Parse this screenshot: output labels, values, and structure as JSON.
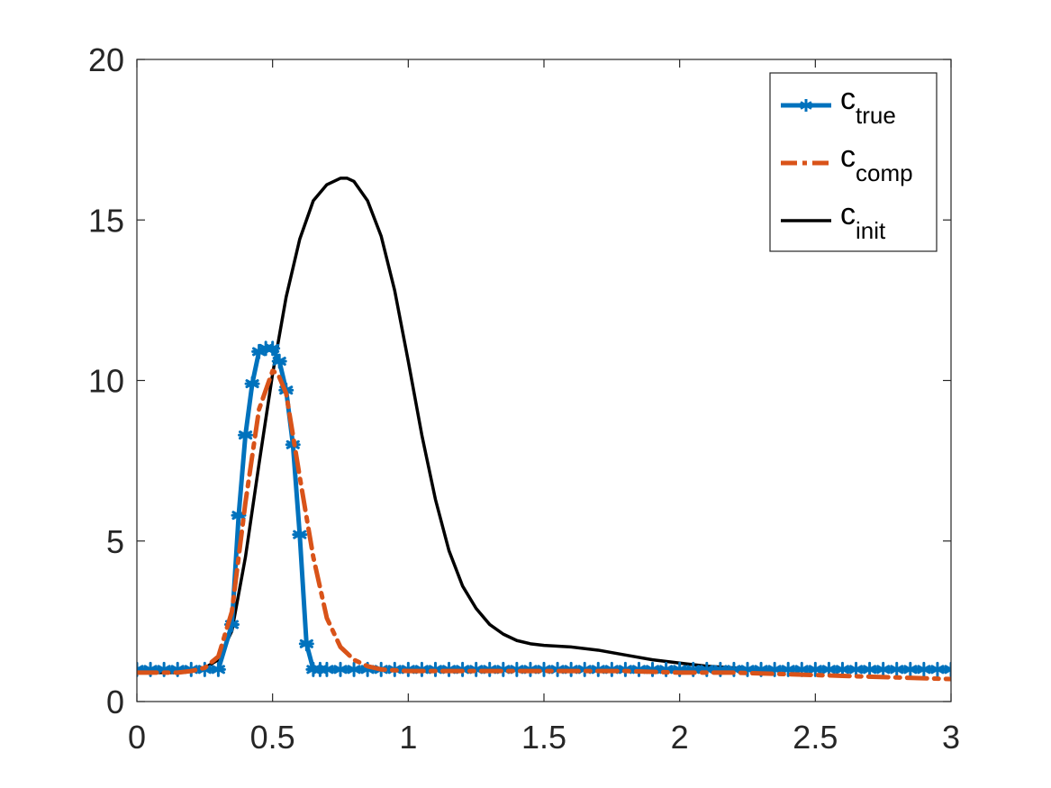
{
  "chart_data": {
    "type": "line",
    "title": "",
    "xlabel": "",
    "ylabel": "",
    "xlim": [
      0,
      3
    ],
    "ylim": [
      0,
      20
    ],
    "x_ticks": [
      "0",
      "0.5",
      "1",
      "1.5",
      "2",
      "2.5",
      "3"
    ],
    "y_ticks": [
      "0",
      "5",
      "10",
      "15",
      "20"
    ],
    "grid": false,
    "legend_position": "top-right",
    "series": [
      {
        "name": "c",
        "name_subscript": "true",
        "color": "#0072BD",
        "style": "solid-star-markers",
        "x": [
          0,
          0.05,
          0.1,
          0.15,
          0.2,
          0.25,
          0.3,
          0.35,
          0.375,
          0.4,
          0.425,
          0.45,
          0.475,
          0.5,
          0.525,
          0.55,
          0.575,
          0.6,
          0.625,
          0.65,
          0.675,
          0.7,
          0.75,
          0.8,
          0.85,
          0.9,
          0.95,
          1.0,
          1.05,
          1.1,
          1.15,
          1.2,
          1.25,
          1.3,
          1.35,
          1.4,
          1.45,
          1.5,
          1.55,
          1.6,
          1.65,
          1.7,
          1.75,
          1.8,
          1.85,
          1.9,
          1.95,
          2.0,
          2.05,
          2.1,
          2.15,
          2.2,
          2.25,
          2.3,
          2.35,
          2.4,
          2.45,
          2.5,
          2.55,
          2.6,
          2.65,
          2.7,
          2.75,
          2.8,
          2.85,
          2.9,
          2.95,
          3.0
        ],
        "y": [
          1.0,
          1.0,
          1.0,
          1.0,
          1.0,
          1.0,
          1.0,
          2.4,
          5.8,
          8.3,
          9.9,
          10.9,
          11.0,
          11.0,
          10.6,
          9.7,
          8.0,
          5.2,
          1.8,
          1.0,
          1.0,
          1.0,
          1.0,
          1.0,
          1.0,
          1.0,
          1.0,
          1.0,
          1.0,
          1.0,
          1.0,
          1.0,
          1.0,
          1.0,
          1.0,
          1.0,
          1.0,
          1.0,
          1.0,
          1.0,
          1.0,
          1.0,
          1.0,
          1.0,
          1.0,
          1.0,
          1.0,
          1.0,
          1.0,
          1.0,
          1.0,
          1.0,
          1.0,
          1.0,
          1.0,
          1.0,
          1.0,
          1.0,
          1.0,
          1.0,
          1.0,
          1.0,
          1.0,
          1.0,
          1.0,
          1.0,
          1.0,
          1.0
        ]
      },
      {
        "name": "c",
        "name_subscript": "comp",
        "color": "#D95319",
        "style": "dash-dot",
        "x": [
          0,
          0.05,
          0.1,
          0.15,
          0.2,
          0.25,
          0.3,
          0.35,
          0.4,
          0.45,
          0.5,
          0.52,
          0.55,
          0.6,
          0.65,
          0.7,
          0.75,
          0.8,
          0.85,
          0.9,
          1.0,
          1.2,
          1.5,
          1.8,
          2.0,
          2.2,
          2.4,
          2.6,
          2.8,
          3.0
        ],
        "y": [
          0.9,
          0.9,
          0.9,
          0.9,
          0.95,
          1.05,
          1.4,
          2.8,
          6.2,
          9.1,
          10.3,
          10.2,
          9.6,
          7.0,
          4.5,
          2.6,
          1.7,
          1.3,
          1.1,
          1.0,
          0.95,
          0.95,
          0.95,
          0.95,
          0.9,
          0.9,
          0.85,
          0.8,
          0.75,
          0.7
        ]
      },
      {
        "name": "c",
        "name_subscript": "init",
        "color": "#000000",
        "style": "solid",
        "x": [
          0,
          0.05,
          0.1,
          0.15,
          0.2,
          0.25,
          0.3,
          0.35,
          0.4,
          0.45,
          0.5,
          0.55,
          0.6,
          0.65,
          0.7,
          0.75,
          0.775,
          0.8,
          0.85,
          0.9,
          0.95,
          1.0,
          1.05,
          1.1,
          1.15,
          1.2,
          1.25,
          1.3,
          1.35,
          1.4,
          1.45,
          1.5,
          1.6,
          1.7,
          1.8,
          1.9,
          2.0,
          2.1,
          2.2,
          2.3,
          2.4,
          2.5,
          2.6,
          2.7,
          2.8,
          2.9,
          3.0
        ],
        "y": [
          0.9,
          0.9,
          0.9,
          0.9,
          0.95,
          1.05,
          1.3,
          2.2,
          4.5,
          7.4,
          10.2,
          12.6,
          14.4,
          15.6,
          16.1,
          16.3,
          16.3,
          16.2,
          15.6,
          14.5,
          12.8,
          10.6,
          8.3,
          6.3,
          4.7,
          3.6,
          2.9,
          2.4,
          2.1,
          1.9,
          1.8,
          1.75,
          1.7,
          1.6,
          1.45,
          1.3,
          1.2,
          1.1,
          1.05,
          1.0,
          1.0,
          1.0,
          1.0,
          1.0,
          1.0,
          1.0,
          1.0
        ]
      }
    ]
  }
}
